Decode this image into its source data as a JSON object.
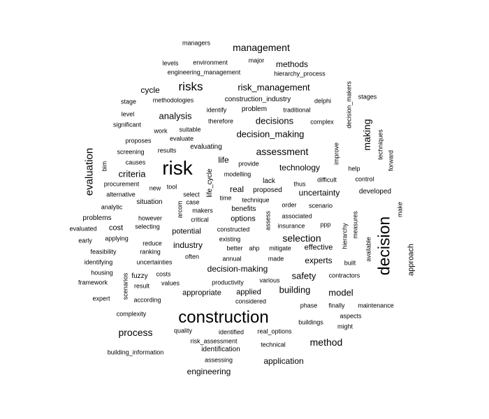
{
  "word_cloud": {
    "words": [
      {
        "text": "managers"
      },
      {
        "text": "management"
      },
      {
        "text": "levels"
      },
      {
        "text": "environment"
      },
      {
        "text": "major"
      },
      {
        "text": "methods"
      },
      {
        "text": "engineering_management"
      },
      {
        "text": "hierarchy_process"
      },
      {
        "text": "decision_makers"
      },
      {
        "text": "cycle"
      },
      {
        "text": "risks"
      },
      {
        "text": "risk_management"
      },
      {
        "text": "stages"
      },
      {
        "text": "stage"
      },
      {
        "text": "methodologies"
      },
      {
        "text": "construction_industry"
      },
      {
        "text": "delphi"
      },
      {
        "text": "level"
      },
      {
        "text": "identify"
      },
      {
        "text": "problem"
      },
      {
        "text": "traditional"
      },
      {
        "text": "analysis"
      },
      {
        "text": "decisions"
      },
      {
        "text": "making"
      },
      {
        "text": "significant"
      },
      {
        "text": "therefore"
      },
      {
        "text": "complex"
      },
      {
        "text": "techniques"
      },
      {
        "text": "work"
      },
      {
        "text": "suitable"
      },
      {
        "text": "decision_making"
      },
      {
        "text": "proposes"
      },
      {
        "text": "evaluate"
      },
      {
        "text": "evaluating"
      },
      {
        "text": "improve"
      },
      {
        "text": "screening"
      },
      {
        "text": "results"
      },
      {
        "text": "assessment"
      },
      {
        "text": "forward"
      },
      {
        "text": "evaluation"
      },
      {
        "text": "causes"
      },
      {
        "text": "risk"
      },
      {
        "text": "life"
      },
      {
        "text": "provide"
      },
      {
        "text": "bim"
      },
      {
        "text": "criteria"
      },
      {
        "text": "technology"
      },
      {
        "text": "help"
      },
      {
        "text": "life_cycle"
      },
      {
        "text": "modelling"
      },
      {
        "text": "difficult"
      },
      {
        "text": "control"
      },
      {
        "text": "procurement"
      },
      {
        "text": "lack"
      },
      {
        "text": "thus"
      },
      {
        "text": "new"
      },
      {
        "text": "tool"
      },
      {
        "text": "real"
      },
      {
        "text": "proposed"
      },
      {
        "text": "uncertainty"
      },
      {
        "text": "developed"
      },
      {
        "text": "alternative"
      },
      {
        "text": "select"
      },
      {
        "text": "time"
      },
      {
        "text": "technique"
      },
      {
        "text": "case"
      },
      {
        "text": "situation"
      },
      {
        "text": "order"
      },
      {
        "text": "scenario"
      },
      {
        "text": "make"
      },
      {
        "text": "analytic"
      },
      {
        "text": "arcom"
      },
      {
        "text": "makers"
      },
      {
        "text": "benefits"
      },
      {
        "text": "problems"
      },
      {
        "text": "however"
      },
      {
        "text": "critical"
      },
      {
        "text": "options"
      },
      {
        "text": "associated"
      },
      {
        "text": "measures"
      },
      {
        "text": "decision"
      },
      {
        "text": "ppp"
      },
      {
        "text": "assess"
      },
      {
        "text": "insurance"
      },
      {
        "text": "evaluated"
      },
      {
        "text": "cost"
      },
      {
        "text": "selecting"
      },
      {
        "text": "constructed"
      },
      {
        "text": "hierarchy"
      },
      {
        "text": "potential"
      },
      {
        "text": "selection"
      },
      {
        "text": "approach"
      },
      {
        "text": "early"
      },
      {
        "text": "applying"
      },
      {
        "text": "existing"
      },
      {
        "text": "available"
      },
      {
        "text": "reduce"
      },
      {
        "text": "industry"
      },
      {
        "text": "feasibility"
      },
      {
        "text": "ranking"
      },
      {
        "text": "better"
      },
      {
        "text": "ahp"
      },
      {
        "text": "mitigate"
      },
      {
        "text": "effective"
      },
      {
        "text": "identifying"
      },
      {
        "text": "uncertainties"
      },
      {
        "text": "often"
      },
      {
        "text": "annual"
      },
      {
        "text": "made"
      },
      {
        "text": "experts"
      },
      {
        "text": "built"
      },
      {
        "text": "decision-making"
      },
      {
        "text": "housing"
      },
      {
        "text": "fuzzy"
      },
      {
        "text": "costs"
      },
      {
        "text": "safety"
      },
      {
        "text": "contractors"
      },
      {
        "text": "framework"
      },
      {
        "text": "values"
      },
      {
        "text": "productivity"
      },
      {
        "text": "various"
      },
      {
        "text": "result"
      },
      {
        "text": "building"
      },
      {
        "text": "appropriate"
      },
      {
        "text": "applied"
      },
      {
        "text": "model"
      },
      {
        "text": "scenarios"
      },
      {
        "text": "expert"
      },
      {
        "text": "according"
      },
      {
        "text": "considered"
      },
      {
        "text": "phase"
      },
      {
        "text": "finally"
      },
      {
        "text": "maintenance"
      },
      {
        "text": "complexity"
      },
      {
        "text": "construction"
      },
      {
        "text": "aspects"
      },
      {
        "text": "buildings"
      },
      {
        "text": "might"
      },
      {
        "text": "process"
      },
      {
        "text": "quality"
      },
      {
        "text": "identified"
      },
      {
        "text": "real_options"
      },
      {
        "text": "method"
      },
      {
        "text": "risk_assessment"
      },
      {
        "text": "technical"
      },
      {
        "text": "building_information"
      },
      {
        "text": "identification"
      },
      {
        "text": "assessing"
      },
      {
        "text": "application"
      },
      {
        "text": "engineering"
      }
    ]
  }
}
